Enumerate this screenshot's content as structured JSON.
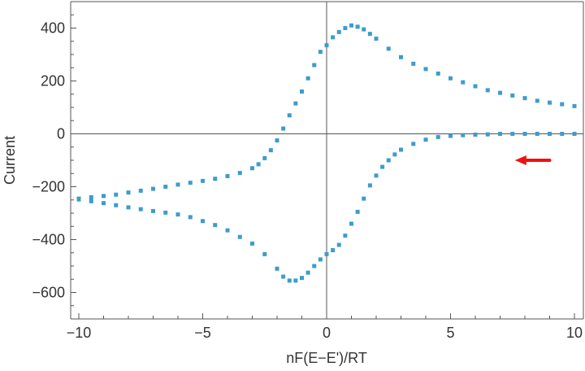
{
  "chart_data": {
    "type": "scatter",
    "title": "",
    "xlabel": "nF(E−E')/RT",
    "ylabel": "Current",
    "xlim": [
      -10,
      10
    ],
    "ylim": [
      -700,
      500
    ],
    "x_ticks": [
      -10,
      -5,
      0,
      5,
      10
    ],
    "x_tick_labels": [
      "−10",
      "−5",
      "0",
      "5",
      "10"
    ],
    "y_ticks": [
      -600,
      -400,
      -200,
      0,
      200,
      400
    ],
    "y_tick_labels": [
      "−600",
      "−400",
      "−200",
      "0",
      "200",
      "400"
    ],
    "grid": false,
    "legend": "none",
    "colors": {
      "points": "#3d9ccc",
      "arrow": "#ee1111",
      "axes": "#555555"
    },
    "annotations": [
      {
        "type": "arrow",
        "direction": "left",
        "x_from": 9,
        "x_to": 7.6,
        "y": -100
      }
    ],
    "series": [
      {
        "branch": "forward",
        "x": [
          -10,
          -9.5,
          -9,
          -8.5,
          -8,
          -7.5,
          -7,
          -6.5,
          -6,
          -5.5,
          -5,
          -4.5,
          -4,
          -3.5,
          -3,
          -2.75,
          -2.5,
          -2.25,
          -2,
          -1.75,
          -1.5,
          -1.25,
          -1,
          -0.75,
          -0.5,
          -0.25,
          0,
          0.25,
          0.5,
          0.75,
          1,
          1.25,
          1.5,
          1.75,
          2,
          2.5,
          3,
          3.5,
          4,
          4.5,
          5,
          5.5,
          6,
          6.5,
          7,
          7.5,
          8,
          8.5,
          9,
          9.5,
          10
        ],
        "y": [
          -245,
          -240,
          -235,
          -230,
          -222,
          -215,
          -208,
          -200,
          -192,
          -185,
          -178,
          -170,
          -160,
          -148,
          -130,
          -115,
          -92,
          -62,
          -25,
          20,
          70,
          115,
          160,
          210,
          260,
          310,
          335,
          365,
          385,
          400,
          410,
          405,
          395,
          378,
          360,
          322,
          290,
          265,
          245,
          228,
          210,
          195,
          180,
          165,
          155,
          145,
          135,
          125,
          118,
          112,
          105
        ]
      },
      {
        "branch": "reverse",
        "x": [
          10,
          9.5,
          9,
          8.5,
          8,
          7.5,
          7,
          6.5,
          6,
          5.5,
          5,
          4.5,
          4,
          3.5,
          3,
          2.75,
          2.5,
          2.25,
          2,
          1.75,
          1.5,
          1.25,
          1,
          0.75,
          0.5,
          0.25,
          0,
          -0.25,
          -0.5,
          -0.75,
          -1,
          -1.25,
          -1.5,
          -1.75,
          -2,
          -2.5,
          -3,
          -3.5,
          -4,
          -4.5,
          -5,
          -5.5,
          -6,
          -6.5,
          -7,
          -7.5,
          -8,
          -8.5,
          -9,
          -9.5,
          -10
        ],
        "y": [
          0,
          0,
          0,
          0,
          0,
          0,
          0,
          -2,
          -3,
          -5,
          -8,
          -12,
          -22,
          -38,
          -60,
          -78,
          -100,
          -125,
          -158,
          -195,
          -245,
          -295,
          -340,
          -385,
          -420,
          -440,
          -455,
          -475,
          -500,
          -525,
          -545,
          -555,
          -555,
          -540,
          -510,
          -455,
          -415,
          -390,
          -365,
          -345,
          -330,
          -315,
          -305,
          -298,
          -292,
          -285,
          -278,
          -270,
          -262,
          -255,
          -248
        ]
      }
    ]
  }
}
